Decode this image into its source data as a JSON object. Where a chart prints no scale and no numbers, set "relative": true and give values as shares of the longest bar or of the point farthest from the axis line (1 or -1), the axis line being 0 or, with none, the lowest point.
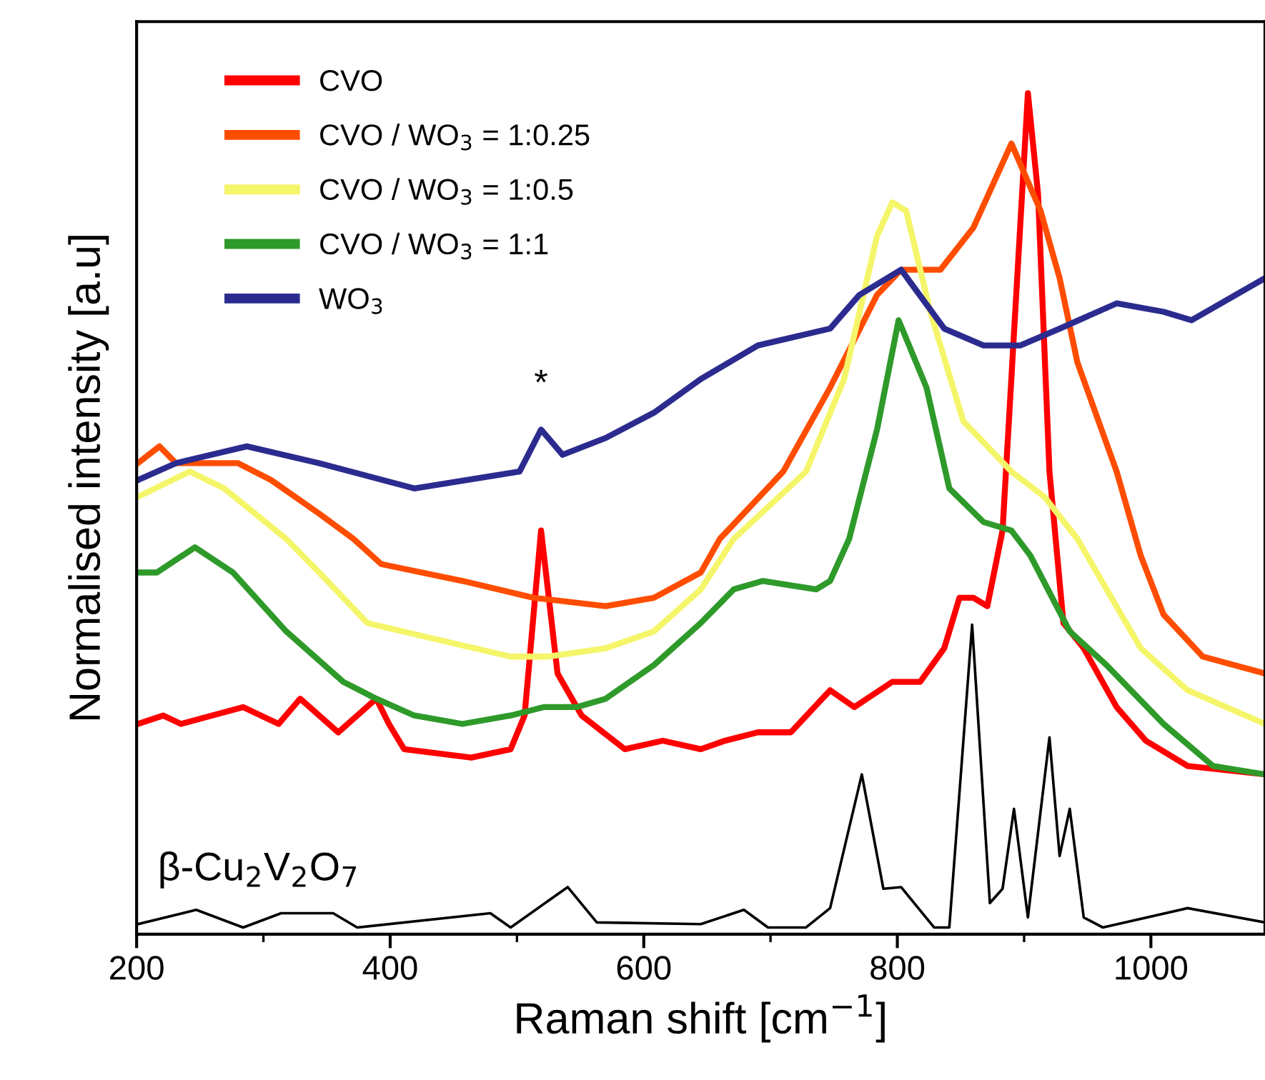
{
  "chart_data": {
    "type": "line",
    "relative": true,
    "xlabel": "Raman shift [cm$^{−1}$]",
    "ylabel": "Normalised intensity [a.u]",
    "xlim": [
      200,
      1090
    ],
    "xticks": [
      200,
      400,
      600,
      800,
      1000
    ],
    "legend": "top left",
    "marker": "none",
    "line_style": "solid",
    "grid": false,
    "annotations": [
      {
        "text": "*",
        "x": 519,
        "y": 0.6
      }
    ],
    "series": [
      {
        "name": "CVO",
        "color": "#ff0000",
        "x": [
          201,
          221,
          235,
          284,
          312,
          329,
          359,
          389,
          399,
          411,
          464,
          495,
          506,
          519,
          532,
          551,
          585,
          615,
          645,
          664,
          690,
          716,
          747,
          766,
          796,
          818,
          837,
          849,
          860,
          871,
          883,
          903,
          911,
          920,
          931,
          947,
          973,
          996,
          1029,
          1090
        ],
        "values": [
          0.25,
          0.26,
          0.25,
          0.27,
          0.25,
          0.28,
          0.24,
          0.28,
          0.25,
          0.22,
          0.21,
          0.22,
          0.26,
          0.48,
          0.31,
          0.26,
          0.22,
          0.23,
          0.22,
          0.23,
          0.24,
          0.24,
          0.29,
          0.27,
          0.3,
          0.3,
          0.34,
          0.4,
          0.4,
          0.39,
          0.48,
          1.0,
          0.88,
          0.55,
          0.37,
          0.34,
          0.27,
          0.23,
          0.2,
          0.19
        ]
      },
      {
        "name": "CVO / WO$_{3}$ = 1:0.25",
        "color": "#ff4d00",
        "x": [
          201,
          218,
          231,
          280,
          306,
          344,
          371,
          393,
          457,
          513,
          570,
          608,
          645,
          660,
          710,
          747,
          784,
          803,
          834,
          860,
          890,
          913,
          928,
          942,
          973,
          992,
          1010,
          1041,
          1090
        ],
        "values": [
          0.56,
          0.58,
          0.56,
          0.56,
          0.54,
          0.5,
          0.47,
          0.44,
          0.42,
          0.4,
          0.39,
          0.4,
          0.43,
          0.47,
          0.55,
          0.65,
          0.76,
          0.79,
          0.79,
          0.84,
          0.94,
          0.86,
          0.78,
          0.68,
          0.55,
          0.45,
          0.38,
          0.33,
          0.31
        ]
      },
      {
        "name": "CVO / WO$_{3}$ = 1:0.5",
        "color": "#f5f56a",
        "x": [
          201,
          242,
          269,
          318,
          344,
          382,
          438,
          495,
          524,
          570,
          608,
          645,
          671,
          728,
          758,
          784,
          796,
          807,
          826,
          852,
          890,
          916,
          942,
          992,
          1029,
          1090
        ],
        "values": [
          0.52,
          0.55,
          0.53,
          0.47,
          0.43,
          0.37,
          0.35,
          0.33,
          0.33,
          0.34,
          0.36,
          0.41,
          0.47,
          0.55,
          0.66,
          0.83,
          0.87,
          0.86,
          0.74,
          0.61,
          0.55,
          0.52,
          0.47,
          0.34,
          0.29,
          0.25
        ]
      },
      {
        "name": "CVO / WO$_{3}$ = 1:1",
        "color": "#2e9a2a",
        "x": [
          201,
          216,
          246,
          276,
          318,
          363,
          389,
          419,
          457,
          495,
          521,
          547,
          570,
          608,
          645,
          671,
          694,
          736,
          747,
          762,
          784,
          801,
          823,
          841,
          868,
          890,
          905,
          936,
          965,
          1010,
          1049,
          1090
        ],
        "values": [
          0.43,
          0.43,
          0.46,
          0.43,
          0.36,
          0.3,
          0.28,
          0.26,
          0.25,
          0.26,
          0.27,
          0.27,
          0.28,
          0.32,
          0.37,
          0.41,
          0.42,
          0.41,
          0.42,
          0.47,
          0.6,
          0.73,
          0.65,
          0.53,
          0.49,
          0.48,
          0.45,
          0.36,
          0.32,
          0.25,
          0.2,
          0.19
        ]
      },
      {
        "name": "WO$_{3}$",
        "color": "#2b2b8f",
        "x": [
          201,
          231,
          287,
          344,
          419,
          502,
          519,
          536,
          570,
          608,
          645,
          690,
          747,
          770,
          803,
          837,
          868,
          897,
          928,
          973,
          1010,
          1032,
          1090
        ],
        "values": [
          0.54,
          0.56,
          0.58,
          0.56,
          0.53,
          0.55,
          0.6,
          0.57,
          0.59,
          0.62,
          0.66,
          0.7,
          0.72,
          0.76,
          0.79,
          0.72,
          0.7,
          0.7,
          0.72,
          0.75,
          0.74,
          0.73,
          0.78
        ]
      },
      {
        "name": "β-Cu$_{2}$V$_{2}$O$_{7}$",
        "color": "#000000",
        "x": [
          201,
          247,
          284,
          314,
          355,
          374,
          479,
          495,
          540,
          563,
          645,
          679,
          698,
          728,
          747,
          772,
          789,
          803,
          829,
          841,
          859,
          873,
          883,
          892,
          903,
          920,
          928,
          936,
          947,
          962,
          1029,
          1090
        ],
        "values": [
          0.012,
          0.029,
          0.008,
          0.025,
          0.025,
          0.008,
          0.025,
          0.008,
          0.056,
          0.014,
          0.012,
          0.029,
          0.008,
          0.008,
          0.031,
          0.19,
          0.054,
          0.056,
          0.008,
          0.008,
          0.368,
          0.037,
          0.054,
          0.149,
          0.02,
          0.234,
          0.093,
          0.149,
          0.02,
          0.008,
          0.031,
          0.014
        ]
      }
    ]
  }
}
